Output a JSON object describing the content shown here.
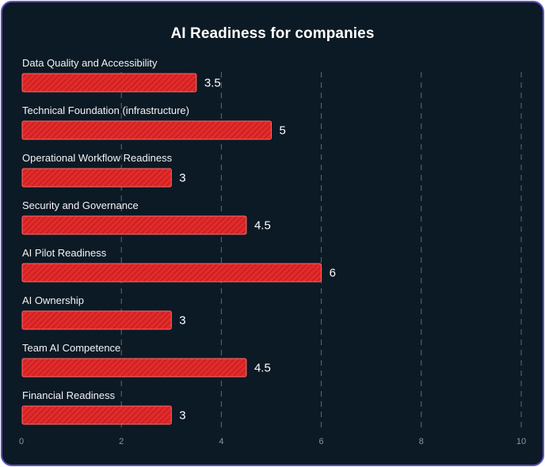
{
  "chart_data": {
    "type": "bar",
    "orientation": "horizontal",
    "title": "AI Readiness for companies",
    "categories": [
      "Data Quality and Accessibility",
      "Technical Foundation (infrastructure)",
      "Operational Workflow Readiness",
      "Security and Governance",
      "AI Pilot Readiness",
      "AI Ownership",
      "Team AI Competence",
      "Financial Readiness"
    ],
    "values": [
      3.5,
      5,
      3,
      4.5,
      6,
      3,
      4.5,
      3
    ],
    "value_labels": [
      "3.5",
      "5",
      "3",
      "4.5",
      "6",
      "3",
      "4.5",
      "3"
    ],
    "xlim": [
      0,
      10
    ],
    "xticks": [
      0,
      2,
      4,
      6,
      8,
      10
    ],
    "xtick_labels": [
      "0",
      "2",
      "4",
      "6",
      "8",
      "10"
    ],
    "grid": "vertical dashed",
    "legend": "none",
    "colors": {
      "background": "#0c1a25",
      "border": "#5b4fc4",
      "bar": "#e32a2a",
      "bar_stripe": "#b51c1f",
      "bar_outline": "#ff6a6a",
      "grid": "#5d6b78"
    }
  }
}
